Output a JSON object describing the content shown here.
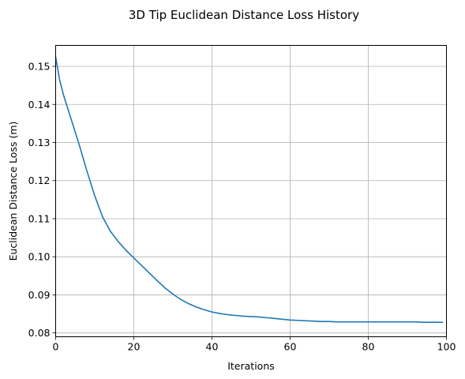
{
  "chart_data": {
    "type": "line",
    "title": "3D Tip Euclidean Distance Loss History",
    "xlabel": "Iterations",
    "ylabel": "Euclidean Distance Loss (m)",
    "xlim": [
      0,
      100
    ],
    "ylim": [
      0.079,
      0.1555
    ],
    "xticks": [
      0,
      20,
      40,
      60,
      80,
      100
    ],
    "yticks": [
      0.08,
      0.09,
      0.1,
      0.11,
      0.12,
      0.13,
      0.14,
      0.15
    ],
    "xtick_labels": [
      "0",
      "20",
      "40",
      "60",
      "80",
      "100"
    ],
    "ytick_labels": [
      "0.08",
      "0.09",
      "0.10",
      "0.11",
      "0.12",
      "0.13",
      "0.14",
      "0.15"
    ],
    "grid": true,
    "color": "#1f77b4",
    "series": [
      {
        "x": [
          0,
          1,
          2,
          4,
          6,
          8,
          10,
          12,
          14,
          16,
          18,
          20,
          22,
          24,
          26,
          28,
          30,
          32,
          34,
          36,
          38,
          40,
          42,
          44,
          46,
          48,
          50,
          52,
          54,
          56,
          58,
          60,
          62,
          64,
          66,
          68,
          70,
          72,
          74,
          76,
          78,
          80,
          82,
          84,
          86,
          88,
          90,
          92,
          94,
          96,
          98,
          99
        ],
        "values": [
          0.1525,
          0.1465,
          0.1425,
          0.136,
          0.1295,
          0.1225,
          0.116,
          0.1105,
          0.1067,
          0.104,
          0.1017,
          0.0997,
          0.0977,
          0.0957,
          0.0937,
          0.0918,
          0.0902,
          0.0888,
          0.0877,
          0.0868,
          0.0861,
          0.0855,
          0.0851,
          0.0848,
          0.0846,
          0.0844,
          0.0843,
          0.0842,
          0.084,
          0.0838,
          0.0836,
          0.0834,
          0.0833,
          0.0832,
          0.0831,
          0.083,
          0.083,
          0.0829,
          0.0829,
          0.0829,
          0.0829,
          0.0829,
          0.0829,
          0.0829,
          0.0829,
          0.0829,
          0.0829,
          0.0829,
          0.0828,
          0.0828,
          0.0828,
          0.0828
        ]
      }
    ]
  }
}
